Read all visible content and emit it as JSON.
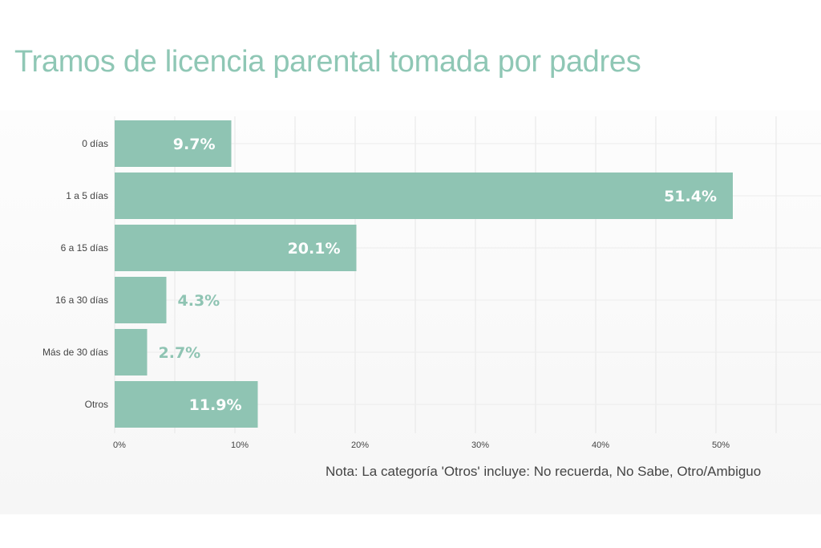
{
  "title": "Tramos de licencia parental tomada por padres",
  "note": "Nota: La categoría 'Otros' incluye: No recuerda, No Sabe, Otro/Ambiguo",
  "colors": {
    "bar": "#8fc4b3",
    "title": "#8fc7b5",
    "label_inside": "#ffffff",
    "label_outside": "#8fc4b3"
  },
  "chart_data": {
    "type": "bar",
    "orientation": "horizontal",
    "title": "Tramos de licencia parental tomada por padres",
    "categories": [
      "0 días",
      "1 a 5 días",
      "6 a 15 días",
      "16 a 30 días",
      "Más de 30 días",
      "Otros"
    ],
    "values": [
      9.7,
      51.4,
      20.1,
      4.3,
      2.7,
      11.9
    ],
    "data_labels": [
      "9.7%",
      "51.4%",
      "20.1%",
      "4.3%",
      "2.7%",
      "11.9%"
    ],
    "x_ticks": [
      "0%",
      "10%",
      "20%",
      "30%",
      "40%",
      "50%"
    ],
    "x_tick_values": [
      0,
      10,
      20,
      30,
      40,
      50
    ],
    "xlim": [
      0,
      58.7
    ],
    "xlabel": "",
    "ylabel": "",
    "grid": true
  }
}
